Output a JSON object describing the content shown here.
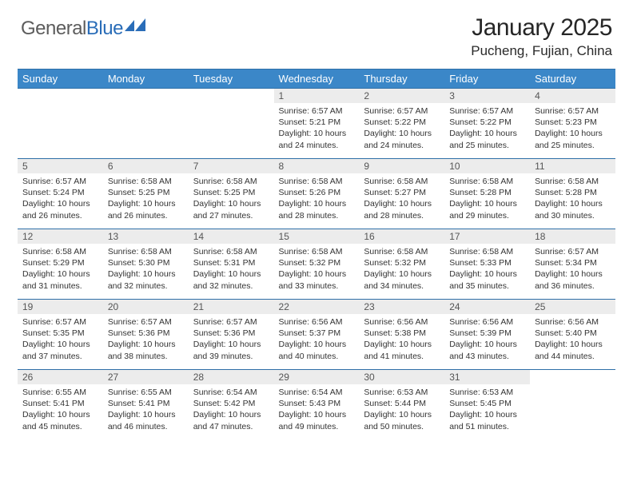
{
  "logo": {
    "text_general": "General",
    "text_blue": "Blue"
  },
  "title": "January 2025",
  "location": "Pucheng, Fujian, China",
  "colors": {
    "header_bg": "#3b87c8",
    "header_text": "#ffffff",
    "row_divider": "#2f6fa8",
    "daynum_bg": "#ececec",
    "body_text": "#333333",
    "logo_gray": "#5c5c5c",
    "logo_blue": "#2a6db8"
  },
  "weekdays": [
    "Sunday",
    "Monday",
    "Tuesday",
    "Wednesday",
    "Thursday",
    "Friday",
    "Saturday"
  ],
  "first_weekday_index": 3,
  "days": [
    {
      "n": 1,
      "sr": "6:57 AM",
      "ss": "5:21 PM",
      "dl": "10 hours and 24 minutes."
    },
    {
      "n": 2,
      "sr": "6:57 AM",
      "ss": "5:22 PM",
      "dl": "10 hours and 24 minutes."
    },
    {
      "n": 3,
      "sr": "6:57 AM",
      "ss": "5:22 PM",
      "dl": "10 hours and 25 minutes."
    },
    {
      "n": 4,
      "sr": "6:57 AM",
      "ss": "5:23 PM",
      "dl": "10 hours and 25 minutes."
    },
    {
      "n": 5,
      "sr": "6:57 AM",
      "ss": "5:24 PM",
      "dl": "10 hours and 26 minutes."
    },
    {
      "n": 6,
      "sr": "6:58 AM",
      "ss": "5:25 PM",
      "dl": "10 hours and 26 minutes."
    },
    {
      "n": 7,
      "sr": "6:58 AM",
      "ss": "5:25 PM",
      "dl": "10 hours and 27 minutes."
    },
    {
      "n": 8,
      "sr": "6:58 AM",
      "ss": "5:26 PM",
      "dl": "10 hours and 28 minutes."
    },
    {
      "n": 9,
      "sr": "6:58 AM",
      "ss": "5:27 PM",
      "dl": "10 hours and 28 minutes."
    },
    {
      "n": 10,
      "sr": "6:58 AM",
      "ss": "5:28 PM",
      "dl": "10 hours and 29 minutes."
    },
    {
      "n": 11,
      "sr": "6:58 AM",
      "ss": "5:28 PM",
      "dl": "10 hours and 30 minutes."
    },
    {
      "n": 12,
      "sr": "6:58 AM",
      "ss": "5:29 PM",
      "dl": "10 hours and 31 minutes."
    },
    {
      "n": 13,
      "sr": "6:58 AM",
      "ss": "5:30 PM",
      "dl": "10 hours and 32 minutes."
    },
    {
      "n": 14,
      "sr": "6:58 AM",
      "ss": "5:31 PM",
      "dl": "10 hours and 32 minutes."
    },
    {
      "n": 15,
      "sr": "6:58 AM",
      "ss": "5:32 PM",
      "dl": "10 hours and 33 minutes."
    },
    {
      "n": 16,
      "sr": "6:58 AM",
      "ss": "5:32 PM",
      "dl": "10 hours and 34 minutes."
    },
    {
      "n": 17,
      "sr": "6:58 AM",
      "ss": "5:33 PM",
      "dl": "10 hours and 35 minutes."
    },
    {
      "n": 18,
      "sr": "6:57 AM",
      "ss": "5:34 PM",
      "dl": "10 hours and 36 minutes."
    },
    {
      "n": 19,
      "sr": "6:57 AM",
      "ss": "5:35 PM",
      "dl": "10 hours and 37 minutes."
    },
    {
      "n": 20,
      "sr": "6:57 AM",
      "ss": "5:36 PM",
      "dl": "10 hours and 38 minutes."
    },
    {
      "n": 21,
      "sr": "6:57 AM",
      "ss": "5:36 PM",
      "dl": "10 hours and 39 minutes."
    },
    {
      "n": 22,
      "sr": "6:56 AM",
      "ss": "5:37 PM",
      "dl": "10 hours and 40 minutes."
    },
    {
      "n": 23,
      "sr": "6:56 AM",
      "ss": "5:38 PM",
      "dl": "10 hours and 41 minutes."
    },
    {
      "n": 24,
      "sr": "6:56 AM",
      "ss": "5:39 PM",
      "dl": "10 hours and 43 minutes."
    },
    {
      "n": 25,
      "sr": "6:56 AM",
      "ss": "5:40 PM",
      "dl": "10 hours and 44 minutes."
    },
    {
      "n": 26,
      "sr": "6:55 AM",
      "ss": "5:41 PM",
      "dl": "10 hours and 45 minutes."
    },
    {
      "n": 27,
      "sr": "6:55 AM",
      "ss": "5:41 PM",
      "dl": "10 hours and 46 minutes."
    },
    {
      "n": 28,
      "sr": "6:54 AM",
      "ss": "5:42 PM",
      "dl": "10 hours and 47 minutes."
    },
    {
      "n": 29,
      "sr": "6:54 AM",
      "ss": "5:43 PM",
      "dl": "10 hours and 49 minutes."
    },
    {
      "n": 30,
      "sr": "6:53 AM",
      "ss": "5:44 PM",
      "dl": "10 hours and 50 minutes."
    },
    {
      "n": 31,
      "sr": "6:53 AM",
      "ss": "5:45 PM",
      "dl": "10 hours and 51 minutes."
    }
  ],
  "labels": {
    "sunrise": "Sunrise:",
    "sunset": "Sunset:",
    "daylight": "Daylight:"
  }
}
